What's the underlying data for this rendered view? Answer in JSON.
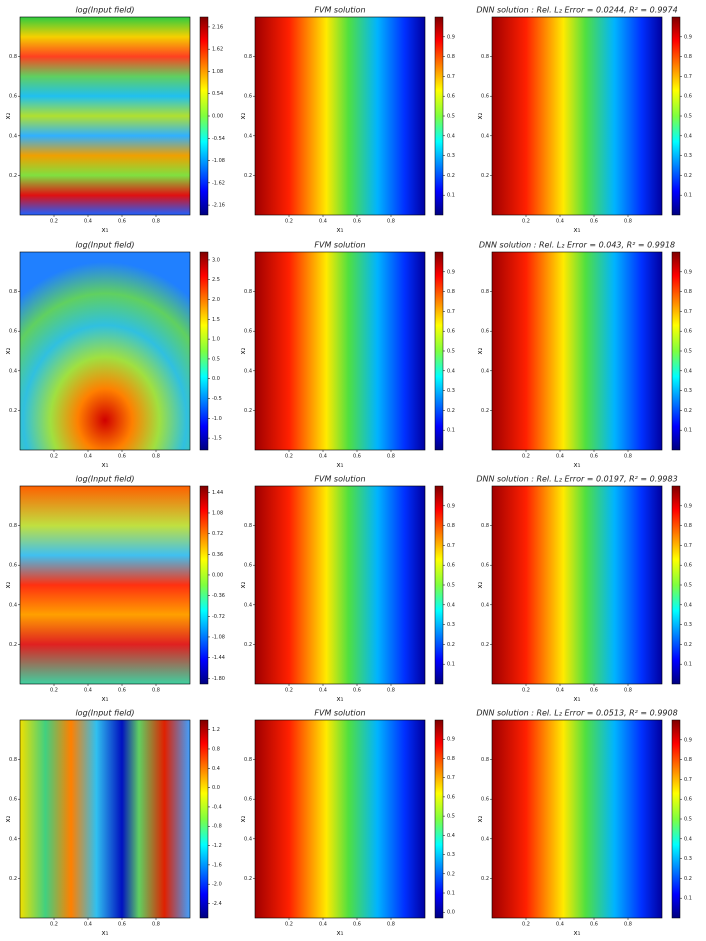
{
  "chart_data": [
    {
      "type": "heatmap",
      "title": "log(Input field)",
      "xlabel": "x₁",
      "ylabel": "x₂",
      "xlim": [
        0,
        1
      ],
      "ylim": [
        0,
        1
      ],
      "xticks": [
        0.2,
        0.4,
        0.6,
        0.8
      ],
      "yticks": [
        0.2,
        0.4,
        0.6,
        0.8
      ],
      "clim": [
        -2.4,
        2.4
      ],
      "cticks": [
        2.16,
        1.62,
        1.08,
        0.54,
        {
          "value": 0,
          "label": "0.00"
        },
        -0.54,
        -1.08,
        -1.62,
        -2.16
      ]
    },
    {
      "type": "heatmap",
      "title": "FVM solution",
      "xlabel": "x₁",
      "ylabel": "x₂",
      "xlim": [
        0,
        1
      ],
      "ylim": [
        0,
        1
      ],
      "xticks": [
        0.2,
        0.4,
        0.6,
        0.8
      ],
      "yticks": [
        0.2,
        0.4,
        0.6,
        0.8
      ],
      "clim": [
        0,
        1
      ],
      "cticks": [
        0.1,
        0.2,
        0.3,
        0.4,
        0.5,
        0.6,
        0.7,
        0.8,
        0.9
      ]
    },
    {
      "type": "heatmap",
      "title": "DNN solution : Rel. L₂ Error = 0.0244, R² = 0.9974",
      "xlabel": "x₁",
      "ylabel": "x₂",
      "xlim": [
        0,
        1
      ],
      "ylim": [
        0,
        1
      ],
      "xticks": [
        0.2,
        0.4,
        0.6,
        0.8
      ],
      "yticks": [
        0.2,
        0.4,
        0.6,
        0.8
      ],
      "clim": [
        0,
        1
      ],
      "cticks": [
        0.1,
        0.2,
        0.3,
        0.4,
        0.5,
        0.6,
        0.7,
        0.8,
        0.9
      ]
    },
    {
      "type": "heatmap",
      "title": "log(Input field)",
      "xlabel": "x₁",
      "ylabel": "x₂",
      "xlim": [
        0,
        1
      ],
      "ylim": [
        0,
        1
      ],
      "xticks": [
        0.2,
        0.4,
        0.6,
        0.8
      ],
      "yticks": [
        0.2,
        0.4,
        0.6,
        0.8
      ],
      "clim": [
        -1.8,
        3.2
      ],
      "cticks": [
        {
          "value": 3,
          "label": "3.0"
        },
        2.5,
        {
          "value": 2,
          "label": "2.0"
        },
        1.5,
        {
          "value": 1,
          "label": "1.0"
        },
        0.5,
        {
          "value": 0,
          "label": "0.0"
        },
        -0.5,
        {
          "value": -1,
          "label": "-1.0"
        },
        -1.5
      ]
    },
    {
      "type": "heatmap",
      "title": "FVM solution",
      "xlabel": "x₁",
      "ylabel": "x₂",
      "xlim": [
        0,
        1
      ],
      "ylim": [
        0,
        1
      ],
      "xticks": [
        0.2,
        0.4,
        0.6,
        0.8
      ],
      "yticks": [
        0.2,
        0.4,
        0.6,
        0.8
      ],
      "clim": [
        0,
        1
      ],
      "cticks": [
        0.1,
        0.2,
        0.3,
        0.4,
        0.5,
        0.6,
        0.7,
        0.8,
        0.9
      ]
    },
    {
      "type": "heatmap",
      "title": "DNN solution : Rel. L₂ Error = 0.043, R² = 0.9918",
      "xlabel": "x₁",
      "ylabel": "x₂",
      "xlim": [
        0,
        1
      ],
      "ylim": [
        0,
        1
      ],
      "xticks": [
        0.2,
        0.4,
        0.6,
        0.8
      ],
      "yticks": [
        0.2,
        0.4,
        0.6,
        0.8
      ],
      "clim": [
        0,
        1
      ],
      "cticks": [
        0.1,
        0.2,
        0.3,
        0.4,
        0.5,
        0.6,
        0.7,
        0.8,
        0.9
      ]
    },
    {
      "type": "heatmap",
      "title": "log(Input field)",
      "xlabel": "x₁",
      "ylabel": "x₂",
      "xlim": [
        0,
        1
      ],
      "ylim": [
        0,
        1
      ],
      "xticks": [
        0.2,
        0.4,
        0.6,
        0.8
      ],
      "yticks": [
        0.2,
        0.4,
        0.6,
        0.8
      ],
      "clim": [
        -1.9,
        1.55
      ],
      "cticks": [
        1.44,
        1.08,
        0.72,
        0.36,
        {
          "value": 0,
          "label": "0.00"
        },
        -0.36,
        -0.72,
        -1.08,
        -1.44,
        {
          "value": -1.8,
          "label": "-1.80"
        }
      ]
    },
    {
      "type": "heatmap",
      "title": "FVM solution",
      "xlabel": "x₁",
      "ylabel": "x₂",
      "xlim": [
        0,
        1
      ],
      "ylim": [
        0,
        1
      ],
      "xticks": [
        0.2,
        0.4,
        0.6,
        0.8
      ],
      "yticks": [
        0.2,
        0.4,
        0.6,
        0.8
      ],
      "clim": [
        0,
        1
      ],
      "cticks": [
        0.1,
        0.2,
        0.3,
        0.4,
        0.5,
        0.6,
        0.7,
        0.8,
        0.9
      ]
    },
    {
      "type": "heatmap",
      "title": "DNN solution : Rel. L₂ Error = 0.0197, R² = 0.9983",
      "xlabel": "x₁",
      "ylabel": "x₂",
      "xlim": [
        0,
        1
      ],
      "ylim": [
        0,
        1
      ],
      "xticks": [
        0.2,
        0.4,
        0.6,
        0.8
      ],
      "yticks": [
        0.2,
        0.4,
        0.6,
        0.8
      ],
      "clim": [
        0,
        1
      ],
      "cticks": [
        0.1,
        0.2,
        0.3,
        0.4,
        0.5,
        0.6,
        0.7,
        0.8,
        0.9
      ]
    },
    {
      "type": "heatmap",
      "title": "log(Input field)",
      "xlabel": "x₁",
      "ylabel": "x₂",
      "xlim": [
        0,
        1
      ],
      "ylim": [
        0,
        1
      ],
      "xticks": [
        0.2,
        0.4,
        0.6,
        0.8
      ],
      "yticks": [
        0.2,
        0.4,
        0.6,
        0.8
      ],
      "clim": [
        -2.7,
        1.4
      ],
      "cticks": [
        1.2,
        0.8,
        0.4,
        {
          "value": 0,
          "label": "0.0"
        },
        -0.4,
        -0.8,
        -1.2,
        -1.6,
        {
          "value": -2,
          "label": "-2.0"
        },
        -2.4
      ]
    },
    {
      "type": "heatmap",
      "title": "FVM solution",
      "xlabel": "x₁",
      "ylabel": "x₂",
      "xlim": [
        0,
        1
      ],
      "ylim": [
        0,
        1
      ],
      "xticks": [
        0.2,
        0.4,
        0.6,
        0.8
      ],
      "yticks": [
        0.2,
        0.4,
        0.6,
        0.8
      ],
      "clim": [
        -0.03,
        1
      ],
      "cticks": [
        {
          "value": 0,
          "label": "0.0"
        },
        0.1,
        0.2,
        0.3,
        0.4,
        0.5,
        0.6,
        0.7,
        0.8,
        0.9
      ]
    },
    {
      "type": "heatmap",
      "title": "DNN solution : Rel. L₂ Error = 0.0513, R² = 0.9908",
      "xlabel": "x₁",
      "ylabel": "x₂",
      "xlim": [
        0,
        1
      ],
      "ylim": [
        0,
        1
      ],
      "xticks": [
        0.2,
        0.4,
        0.6,
        0.8
      ],
      "yticks": [
        0.2,
        0.4,
        0.6,
        0.8
      ],
      "clim": [
        0,
        1
      ],
      "cticks": [
        0.1,
        0.2,
        0.3,
        0.4,
        0.5,
        0.6,
        0.7,
        0.8,
        0.9
      ]
    }
  ]
}
